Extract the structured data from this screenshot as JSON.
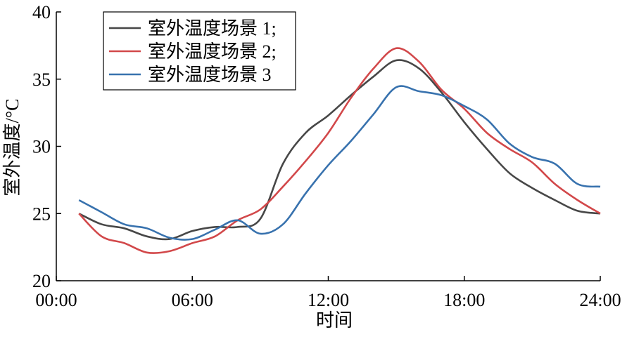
{
  "chart_data": {
    "type": "line",
    "x_label": "时间",
    "y_label": "室外温度/°C",
    "x": [
      1,
      2,
      3,
      4,
      5,
      6,
      7,
      8,
      9,
      10,
      11,
      12,
      13,
      14,
      15,
      16,
      17,
      18,
      19,
      20,
      21,
      22,
      23,
      24
    ],
    "series": [
      {
        "name": "室外温度场景 1;",
        "color": "#474747",
        "values": [
          25.0,
          24.2,
          23.9,
          23.3,
          23.1,
          23.7,
          24.0,
          24.0,
          24.6,
          28.7,
          31.0,
          32.3,
          33.8,
          35.2,
          36.4,
          35.8,
          34.0,
          31.8,
          29.8,
          28.0,
          26.9,
          26.0,
          25.2,
          25.0
        ]
      },
      {
        "name": "室外温度场景 2;",
        "color": "#d2484a",
        "values": [
          25.0,
          23.3,
          22.8,
          22.1,
          22.2,
          22.8,
          23.3,
          24.5,
          25.3,
          27.0,
          28.9,
          31.0,
          33.6,
          35.8,
          37.3,
          36.3,
          34.2,
          32.8,
          31.0,
          29.8,
          28.8,
          27.2,
          26.0,
          25.0
        ]
      },
      {
        "name": "室外温度场景 3",
        "color": "#3872ae",
        "values": [
          26.0,
          25.1,
          24.2,
          23.9,
          23.2,
          23.1,
          23.8,
          24.5,
          23.5,
          24.2,
          26.5,
          28.6,
          30.4,
          32.4,
          34.4,
          34.1,
          33.8,
          33.0,
          32.0,
          30.2,
          29.2,
          28.7,
          27.2,
          27.0
        ]
      }
    ],
    "xlim": [
      0,
      24
    ],
    "xticks": [
      {
        "value": 0,
        "label": "00:00"
      },
      {
        "value": 6,
        "label": "06:00"
      },
      {
        "value": 12,
        "label": "12:00"
      },
      {
        "value": 18,
        "label": "18:00"
      },
      {
        "value": 24,
        "label": "24:00"
      }
    ],
    "ylim": [
      20,
      40
    ],
    "yticks": [
      20,
      25,
      30,
      35,
      40
    ],
    "legend": "upper-left"
  }
}
